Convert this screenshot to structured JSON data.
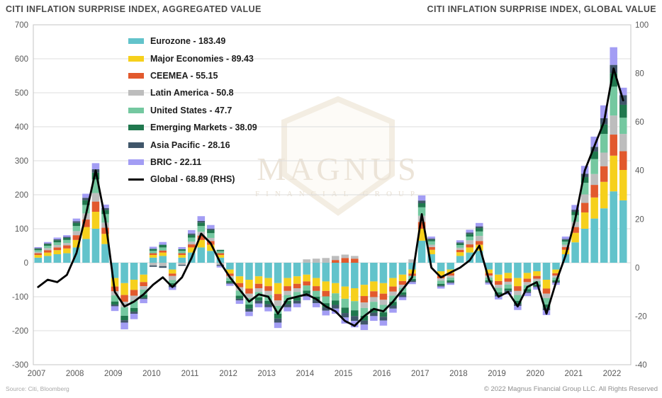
{
  "header": {
    "title_left": "CITI INFLATION SURPRISE INDEX, AGGREGATED VALUE",
    "title_right": "CITI INFLATION SURPRISE INDEX, GLOBAL VALUE"
  },
  "watermark": {
    "wordmark": "MAGNUS",
    "subtitle": "FINANCIAL GROUP"
  },
  "footer": {
    "source": "Source: Citi, Bloomberg",
    "copyright": "© 2022 Magnus Financial Group LLC. All Rights Reserved"
  },
  "colors": {
    "grid": "#dcdcdc",
    "plot_border": "#c4c4c4",
    "axis_text": "#595959",
    "watermark_stroke": "#f3ede2"
  },
  "chart_data": {
    "type": "bar",
    "stacked": true,
    "grid": "horizontal",
    "legend_position": "inside-top-left",
    "title": "CITI INFLATION SURPRISE INDEX, AGGREGATED VALUE",
    "xlabel": "",
    "ylabel": "",
    "left_axis": {
      "min": -300,
      "max": 700,
      "ticks": [
        700,
        600,
        500,
        400,
        300,
        200,
        100,
        0,
        -100,
        -200,
        -300
      ]
    },
    "right_axis": {
      "min": -40,
      "max": 100,
      "ticks": [
        100,
        80,
        60,
        40,
        20,
        0,
        -20,
        -40
      ]
    },
    "x_year_labels": [
      "2007",
      "2008",
      "2009",
      "2010",
      "2011",
      "2012",
      "2013",
      "2014",
      "2015",
      "2016",
      "2017",
      "2018",
      "2019",
      "2020",
      "2021",
      "2022"
    ],
    "x": [
      "2007Q1",
      "2007Q2",
      "2007Q3",
      "2007Q4",
      "2008Q1",
      "2008Q2",
      "2008Q3",
      "2008Q4",
      "2009Q1",
      "2009Q2",
      "2009Q3",
      "2009Q4",
      "2010Q1",
      "2010Q2",
      "2010Q3",
      "2010Q4",
      "2011Q1",
      "2011Q2",
      "2011Q3",
      "2011Q4",
      "2012Q1",
      "2012Q2",
      "2012Q3",
      "2012Q4",
      "2013Q1",
      "2013Q2",
      "2013Q3",
      "2013Q4",
      "2014Q1",
      "2014Q2",
      "2014Q3",
      "2014Q4",
      "2015Q1",
      "2015Q2",
      "2015Q3",
      "2015Q4",
      "2016Q1",
      "2016Q2",
      "2016Q3",
      "2016Q4",
      "2017Q1",
      "2017Q2",
      "2017Q3",
      "2017Q4",
      "2018Q1",
      "2018Q2",
      "2018Q3",
      "2018Q4",
      "2019Q1",
      "2019Q2",
      "2019Q3",
      "2019Q4",
      "2020Q1",
      "2020Q2",
      "2020Q3",
      "2020Q4",
      "2021Q1",
      "2021Q2",
      "2021Q3",
      "2021Q4",
      "2022Q1",
      "2022Q2"
    ],
    "series": [
      {
        "name": "Eurozone",
        "legend_label": "Eurozone - 183.49",
        "latest": 183.49,
        "color": "#62c3cb",
        "axis": "left",
        "kind": "bar",
        "values": [
          15,
          20,
          25,
          28,
          45,
          70,
          100,
          55,
          -45,
          -60,
          -50,
          -35,
          15,
          20,
          -20,
          15,
          30,
          45,
          35,
          15,
          -20,
          -40,
          -50,
          -40,
          -45,
          -60,
          -45,
          -40,
          -35,
          -45,
          -55,
          -60,
          -70,
          -75,
          -65,
          -55,
          -60,
          -45,
          -35,
          -20,
          65,
          25,
          -25,
          -20,
          20,
          30,
          35,
          -20,
          -35,
          -30,
          -45,
          -30,
          -25,
          -50,
          -20,
          25,
          60,
          100,
          130,
          160,
          210,
          183.49
        ]
      },
      {
        "name": "Major Economies",
        "legend_label": "Major Economies - 89.43",
        "latest": 89.43,
        "color": "#f6d01c",
        "axis": "left",
        "kind": "bar",
        "values": [
          8,
          10,
          12,
          14,
          22,
          35,
          50,
          30,
          -25,
          -35,
          -30,
          -22,
          8,
          10,
          -12,
          8,
          15,
          22,
          18,
          8,
          -12,
          -20,
          -26,
          -22,
          -24,
          -32,
          -24,
          -22,
          -20,
          -24,
          -28,
          -30,
          -36,
          -38,
          -33,
          -29,
          -31,
          -25,
          -19,
          -12,
          35,
          13,
          -13,
          -11,
          11,
          15,
          18,
          -11,
          -19,
          -16,
          -24,
          -17,
          -14,
          -26,
          -11,
          13,
          28,
          48,
          62,
          78,
          105,
          89.43
        ]
      },
      {
        "name": "CEEMEA",
        "legend_label": "CEEMEA - 55.15",
        "latest": 55.15,
        "color": "#e2592d",
        "axis": "left",
        "kind": "bar",
        "values": [
          5,
          7,
          8,
          9,
          14,
          22,
          30,
          18,
          -14,
          -20,
          -17,
          -12,
          5,
          6,
          -7,
          5,
          9,
          13,
          11,
          5,
          -7,
          -12,
          -15,
          -13,
          -14,
          -19,
          -14,
          -13,
          -12,
          -14,
          -16,
          8,
          14,
          12,
          -19,
          -17,
          -18,
          -15,
          -11,
          -7,
          20,
          8,
          -8,
          -7,
          7,
          9,
          11,
          -7,
          -11,
          -10,
          -14,
          -10,
          -8,
          -15,
          -7,
          8,
          17,
          28,
          37,
          46,
          62,
          55.15
        ]
      },
      {
        "name": "Latin America",
        "legend_label": "Latin America - 50.8",
        "latest": 50.8,
        "color": "#bdbdbd",
        "axis": "left",
        "kind": "bar",
        "values": [
          4,
          6,
          7,
          7,
          12,
          18,
          25,
          15,
          -12,
          -16,
          -14,
          -10,
          -8,
          -10,
          -12,
          -6,
          8,
          11,
          9,
          -6,
          -6,
          -10,
          -13,
          -11,
          -12,
          -16,
          -12,
          -11,
          10,
          12,
          14,
          12,
          10,
          8,
          -16,
          -14,
          -15,
          -12,
          -9,
          10,
          18,
          7,
          -7,
          -6,
          6,
          12,
          15,
          -6,
          -9,
          -8,
          -12,
          -9,
          -7,
          -13,
          -6,
          7,
          15,
          25,
          32,
          40,
          56,
          50.8
        ]
      },
      {
        "name": "United States",
        "legend_label": "United States - 47.7",
        "latest": 47.7,
        "color": "#74c8a0",
        "axis": "left",
        "kind": "bar",
        "values": [
          5,
          7,
          8,
          9,
          15,
          25,
          40,
          25,
          -18,
          -25,
          -22,
          -16,
          7,
          9,
          -9,
          7,
          12,
          17,
          14,
          6,
          -9,
          -15,
          -19,
          -16,
          -17,
          -23,
          -17,
          -16,
          -15,
          -17,
          -20,
          -21,
          -26,
          -27,
          -23,
          -20,
          -22,
          -18,
          -13,
          -9,
          25,
          10,
          -9,
          -8,
          8,
          11,
          13,
          -8,
          -13,
          -12,
          -17,
          -12,
          -10,
          -19,
          -8,
          9,
          20,
          34,
          44,
          55,
          85,
          47.7
        ]
      },
      {
        "name": "Emerging Markets",
        "legend_label": "Emerging Markets - 38.09",
        "latest": 38.09,
        "color": "#20784e",
        "axis": "left",
        "kind": "bar",
        "values": [
          4,
          5,
          6,
          6,
          9,
          14,
          20,
          12,
          -9,
          -13,
          -11,
          -8,
          6,
          8,
          -7,
          5,
          8,
          10,
          9,
          4,
          -5,
          -9,
          -12,
          -10,
          -10,
          -14,
          -10,
          -10,
          -9,
          -10,
          -12,
          -13,
          -16,
          -17,
          -14,
          -12,
          -13,
          -11,
          -8,
          -5,
          12,
          5,
          -5,
          -5,
          5,
          8,
          10,
          -4,
          -7,
          -6,
          -9,
          -7,
          -5,
          -10,
          -4,
          5,
          10,
          17,
          22,
          28,
          40,
          38.09
        ]
      },
      {
        "name": "Asia Pacific",
        "legend_label": "Asia Pacific - 28.16",
        "latest": 28.16,
        "color": "#40566a",
        "axis": "left",
        "kind": "bar",
        "values": [
          2,
          2,
          3,
          3,
          5,
          7,
          10,
          6,
          -5,
          -7,
          -6,
          -4,
          -4,
          -5,
          -5,
          -3,
          4,
          5,
          4,
          -3,
          -3,
          -5,
          -9,
          -8,
          -9,
          -12,
          -9,
          -8,
          -8,
          -9,
          -10,
          -11,
          -13,
          -14,
          -12,
          -10,
          -11,
          -9,
          -6,
          -4,
          8,
          3,
          -3,
          -3,
          3,
          4,
          5,
          -3,
          -5,
          -4,
          -6,
          -4,
          -3,
          -7,
          -3,
          3,
          6,
          10,
          14,
          18,
          24,
          28.16
        ]
      },
      {
        "name": "BRIC",
        "legend_label": "BRIC - 22.11",
        "latest": 22.11,
        "color": "#a39df4",
        "axis": "left",
        "kind": "bar",
        "values": [
          3,
          4,
          5,
          5,
          8,
          12,
          18,
          10,
          -14,
          -20,
          -16,
          -12,
          6,
          8,
          -8,
          6,
          10,
          14,
          11,
          -5,
          -6,
          -10,
          -13,
          -11,
          -12,
          -16,
          -12,
          -11,
          -11,
          -12,
          -14,
          -15,
          -18,
          -19,
          -16,
          -14,
          -15,
          -12,
          -9,
          -6,
          15,
          6,
          -6,
          -5,
          6,
          8,
          10,
          -5,
          -9,
          -8,
          -12,
          -9,
          -7,
          -14,
          -6,
          7,
          14,
          23,
          30,
          38,
          52,
          22.11
        ]
      },
      {
        "name": "Global",
        "legend_label": "Global - 68.89 (RHS)",
        "latest": 68.89,
        "color": "#000000",
        "axis": "right",
        "kind": "line",
        "values": [
          -8,
          -5,
          -6,
          -3,
          6,
          22,
          40,
          20,
          -10,
          -16,
          -14,
          -11,
          -7,
          -4,
          -8,
          -4,
          4,
          14,
          10,
          2,
          -4,
          -9,
          -14,
          -11,
          -12,
          -19,
          -13,
          -12,
          -11,
          -13,
          -16,
          -18,
          -22,
          -24,
          -20,
          -17,
          -18,
          -14,
          -9,
          -4,
          22,
          0,
          -4,
          -2,
          0,
          3,
          9,
          -5,
          -12,
          -10,
          -16,
          -8,
          -6,
          -19,
          -6,
          5,
          20,
          40,
          50,
          60,
          82,
          68.89
        ]
      }
    ]
  }
}
